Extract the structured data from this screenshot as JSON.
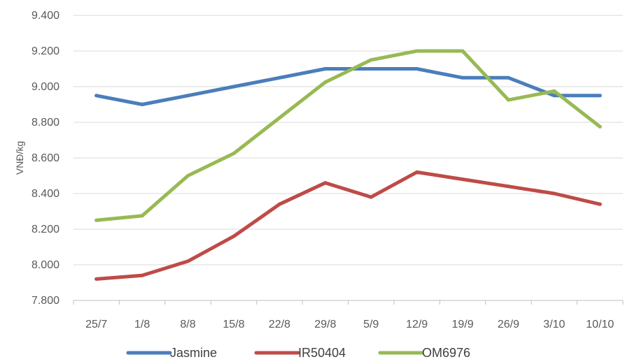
{
  "chart_data": {
    "type": "line",
    "title": "",
    "xlabel": "",
    "ylabel": "VNĐ/kg",
    "categories": [
      "25/7",
      "1/8",
      "8/8",
      "15/8",
      "22/8",
      "29/8",
      "5/9",
      "12/9",
      "19/9",
      "26/9",
      "3/10",
      "10/10"
    ],
    "ylim": [
      7800,
      9400
    ],
    "yticks": [
      7800,
      8000,
      8200,
      8400,
      8600,
      8800,
      9000,
      9200,
      9400
    ],
    "ytick_labels": [
      "7.800",
      "8.000",
      "8.200",
      "8.400",
      "8.600",
      "8.800",
      "9.000",
      "9.200",
      "9.400"
    ],
    "grid": "horizontal",
    "legend_position": "bottom",
    "series": [
      {
        "name": "Jasmine",
        "color": "#4a7ebb",
        "values": [
          8950,
          8900,
          8950,
          9000,
          9050,
          9100,
          9100,
          9100,
          9050,
          9050,
          8950,
          8950
        ]
      },
      {
        "name": "IR50404",
        "color": "#be4b48",
        "values": [
          7920,
          7940,
          8020,
          8160,
          8340,
          8460,
          8380,
          8520,
          8480,
          8440,
          8400,
          8340
        ]
      },
      {
        "name": "OM6976",
        "color": "#98b954",
        "values": [
          8250,
          8275,
          8500,
          8625,
          8825,
          9025,
          9150,
          9200,
          9200,
          8925,
          8975,
          8775
        ]
      }
    ]
  }
}
